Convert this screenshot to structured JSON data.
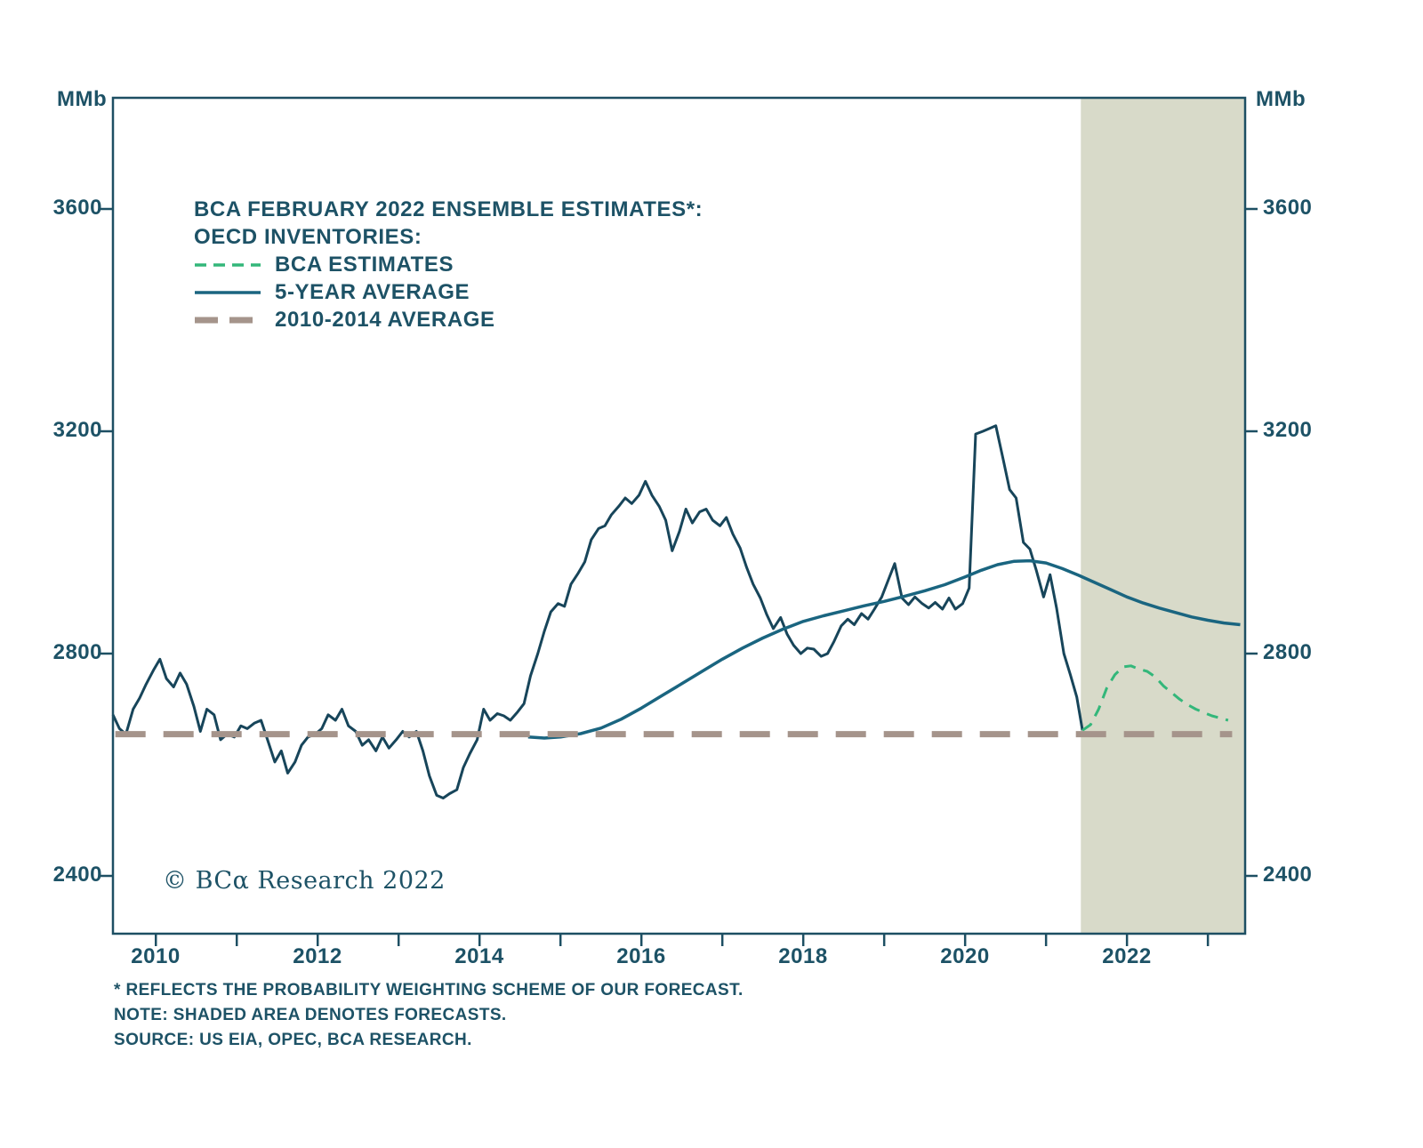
{
  "figure": {
    "unit_left": "MMb",
    "unit_right": "MMb",
    "copyright": "© BCα Research 2022",
    "footnotes": [
      "* REFLECTS THE PROBABILITY WEIGHTING SCHEME OF OUR FORECAST.",
      "NOTE: SHADED AREA DENOTES FORECASTS.",
      "SOURCE: US EIA, OPEC, BCA RESEARCH."
    ]
  },
  "legend": {
    "title_line1": "BCA FEBRUARY 2022 ENSEMBLE ESTIMATES*:",
    "title_line2": "OECD INVENTORIES:",
    "items": [
      {
        "label": "BCA ESTIMATES",
        "style": "dashed",
        "color": "#33b77a"
      },
      {
        "label": "5-YEAR AVERAGE",
        "style": "solid",
        "color": "#1a6580"
      },
      {
        "label": "2010-2014 AVERAGE",
        "style": "dashed-thick",
        "color": "#a5948b"
      }
    ]
  },
  "chart_data": {
    "type": "line",
    "title": "BCA FEBRUARY 2022 ENSEMBLE ESTIMATES: OECD INVENTORIES",
    "ylabel": "MMb",
    "xlabel": "",
    "x_range": [
      2009.47,
      2023.46
    ],
    "y_range": [
      2296,
      3800
    ],
    "y_ticks": [
      2400,
      2800,
      3200,
      3600
    ],
    "x_minor_ticks": [
      2010,
      2011,
      2012,
      2013,
      2014,
      2015,
      2016,
      2017,
      2018,
      2019,
      2020,
      2021,
      2022,
      2023
    ],
    "x_tick_labels": [
      2010,
      2012,
      2014,
      2016,
      2018,
      2020,
      2022
    ],
    "grid": false,
    "legend_position": "top-left-inside",
    "forecast_region": {
      "start": 2021.43,
      "end": 2023.46,
      "color": "#d8dac9",
      "note": "SHADED AREA DENOTES FORECASTS"
    },
    "frame_color": "#1d4f63",
    "series": [
      {
        "name": "OECD INVENTORIES (ACTUAL)",
        "color": "#17455a",
        "width": 3,
        "dash": null,
        "points": [
          [
            2009.47,
            2690
          ],
          [
            2009.55,
            2665
          ],
          [
            2009.63,
            2655
          ],
          [
            2009.72,
            2700
          ],
          [
            2009.8,
            2720
          ],
          [
            2009.88,
            2745
          ],
          [
            2009.97,
            2770
          ],
          [
            2010.05,
            2790
          ],
          [
            2010.13,
            2755
          ],
          [
            2010.22,
            2740
          ],
          [
            2010.3,
            2765
          ],
          [
            2010.38,
            2745
          ],
          [
            2010.47,
            2705
          ],
          [
            2010.55,
            2660
          ],
          [
            2010.63,
            2700
          ],
          [
            2010.72,
            2690
          ],
          [
            2010.8,
            2645
          ],
          [
            2010.88,
            2655
          ],
          [
            2010.97,
            2650
          ],
          [
            2011.05,
            2670
          ],
          [
            2011.13,
            2665
          ],
          [
            2011.22,
            2675
          ],
          [
            2011.3,
            2680
          ],
          [
            2011.38,
            2645
          ],
          [
            2011.47,
            2605
          ],
          [
            2011.55,
            2625
          ],
          [
            2011.63,
            2585
          ],
          [
            2011.72,
            2605
          ],
          [
            2011.8,
            2635
          ],
          [
            2011.88,
            2650
          ],
          [
            2011.97,
            2655
          ],
          [
            2012.05,
            2665
          ],
          [
            2012.13,
            2690
          ],
          [
            2012.22,
            2680
          ],
          [
            2012.3,
            2700
          ],
          [
            2012.38,
            2670
          ],
          [
            2012.47,
            2660
          ],
          [
            2012.55,
            2635
          ],
          [
            2012.63,
            2645
          ],
          [
            2012.72,
            2625
          ],
          [
            2012.8,
            2650
          ],
          [
            2012.88,
            2630
          ],
          [
            2012.97,
            2645
          ],
          [
            2013.05,
            2660
          ],
          [
            2013.13,
            2650
          ],
          [
            2013.22,
            2660
          ],
          [
            2013.3,
            2625
          ],
          [
            2013.38,
            2580
          ],
          [
            2013.47,
            2545
          ],
          [
            2013.55,
            2540
          ],
          [
            2013.63,
            2548
          ],
          [
            2013.72,
            2555
          ],
          [
            2013.8,
            2595
          ],
          [
            2013.88,
            2620
          ],
          [
            2013.97,
            2645
          ],
          [
            2014.05,
            2700
          ],
          [
            2014.13,
            2680
          ],
          [
            2014.22,
            2692
          ],
          [
            2014.3,
            2688
          ],
          [
            2014.38,
            2680
          ],
          [
            2014.47,
            2695
          ],
          [
            2014.55,
            2710
          ],
          [
            2014.63,
            2760
          ],
          [
            2014.72,
            2800
          ],
          [
            2014.8,
            2840
          ],
          [
            2014.88,
            2875
          ],
          [
            2014.97,
            2890
          ],
          [
            2015.05,
            2885
          ],
          [
            2015.13,
            2925
          ],
          [
            2015.22,
            2945
          ],
          [
            2015.3,
            2965
          ],
          [
            2015.38,
            3005
          ],
          [
            2015.47,
            3025
          ],
          [
            2015.55,
            3030
          ],
          [
            2015.63,
            3050
          ],
          [
            2015.72,
            3065
          ],
          [
            2015.8,
            3080
          ],
          [
            2015.88,
            3070
          ],
          [
            2015.97,
            3085
          ],
          [
            2016.05,
            3110
          ],
          [
            2016.13,
            3085
          ],
          [
            2016.22,
            3065
          ],
          [
            2016.3,
            3040
          ],
          [
            2016.38,
            2985
          ],
          [
            2016.47,
            3020
          ],
          [
            2016.55,
            3060
          ],
          [
            2016.63,
            3035
          ],
          [
            2016.72,
            3055
          ],
          [
            2016.8,
            3060
          ],
          [
            2016.88,
            3040
          ],
          [
            2016.97,
            3030
          ],
          [
            2017.05,
            3045
          ],
          [
            2017.13,
            3015
          ],
          [
            2017.22,
            2990
          ],
          [
            2017.3,
            2955
          ],
          [
            2017.38,
            2925
          ],
          [
            2017.47,
            2900
          ],
          [
            2017.55,
            2870
          ],
          [
            2017.63,
            2845
          ],
          [
            2017.72,
            2865
          ],
          [
            2017.8,
            2835
          ],
          [
            2017.88,
            2815
          ],
          [
            2017.97,
            2800
          ],
          [
            2018.05,
            2810
          ],
          [
            2018.13,
            2808
          ],
          [
            2018.22,
            2795
          ],
          [
            2018.3,
            2800
          ],
          [
            2018.38,
            2822
          ],
          [
            2018.47,
            2850
          ],
          [
            2018.55,
            2862
          ],
          [
            2018.63,
            2852
          ],
          [
            2018.72,
            2872
          ],
          [
            2018.8,
            2862
          ],
          [
            2018.88,
            2880
          ],
          [
            2018.97,
            2902
          ],
          [
            2019.05,
            2932
          ],
          [
            2019.13,
            2962
          ],
          [
            2019.22,
            2900
          ],
          [
            2019.3,
            2888
          ],
          [
            2019.38,
            2902
          ],
          [
            2019.47,
            2890
          ],
          [
            2019.55,
            2882
          ],
          [
            2019.63,
            2892
          ],
          [
            2019.72,
            2880
          ],
          [
            2019.8,
            2900
          ],
          [
            2019.88,
            2880
          ],
          [
            2019.97,
            2890
          ],
          [
            2020.05,
            2918
          ],
          [
            2020.13,
            3195
          ],
          [
            2020.22,
            3200
          ],
          [
            2020.3,
            3205
          ],
          [
            2020.38,
            3210
          ],
          [
            2020.47,
            3150
          ],
          [
            2020.55,
            3095
          ],
          [
            2020.63,
            3080
          ],
          [
            2020.72,
            3000
          ],
          [
            2020.8,
            2988
          ],
          [
            2020.88,
            2950
          ],
          [
            2020.97,
            2902
          ],
          [
            2021.05,
            2942
          ],
          [
            2021.13,
            2882
          ],
          [
            2021.22,
            2800
          ],
          [
            2021.3,
            2762
          ],
          [
            2021.38,
            2722
          ],
          [
            2021.45,
            2662
          ]
        ]
      },
      {
        "name": "5-YEAR AVERAGE",
        "color": "#1a6580",
        "width": 3.5,
        "dash": null,
        "points": [
          [
            2014.6,
            2650
          ],
          [
            2014.8,
            2648
          ],
          [
            2015.0,
            2650
          ],
          [
            2015.25,
            2656
          ],
          [
            2015.5,
            2666
          ],
          [
            2015.75,
            2682
          ],
          [
            2016.0,
            2702
          ],
          [
            2016.25,
            2724
          ],
          [
            2016.5,
            2746
          ],
          [
            2016.75,
            2768
          ],
          [
            2017.0,
            2790
          ],
          [
            2017.25,
            2810
          ],
          [
            2017.5,
            2828
          ],
          [
            2017.75,
            2844
          ],
          [
            2018.0,
            2858
          ],
          [
            2018.25,
            2868
          ],
          [
            2018.5,
            2877
          ],
          [
            2018.75,
            2886
          ],
          [
            2019.0,
            2894
          ],
          [
            2019.25,
            2903
          ],
          [
            2019.5,
            2913
          ],
          [
            2019.75,
            2924
          ],
          [
            2020.0,
            2938
          ],
          [
            2020.2,
            2950
          ],
          [
            2020.4,
            2960
          ],
          [
            2020.6,
            2966
          ],
          [
            2020.8,
            2967
          ],
          [
            2021.0,
            2963
          ],
          [
            2021.2,
            2953
          ],
          [
            2021.4,
            2941
          ],
          [
            2021.6,
            2928
          ],
          [
            2021.8,
            2915
          ],
          [
            2022.0,
            2902
          ],
          [
            2022.2,
            2891
          ],
          [
            2022.4,
            2882
          ],
          [
            2022.6,
            2874
          ],
          [
            2022.8,
            2866
          ],
          [
            2023.0,
            2860
          ],
          [
            2023.2,
            2855
          ],
          [
            2023.4,
            2852
          ]
        ]
      },
      {
        "name": "BCA ESTIMATES (FORECAST)",
        "color": "#33b77a",
        "width": 3,
        "dash": "13,9",
        "points": [
          [
            2021.45,
            2662
          ],
          [
            2021.55,
            2672
          ],
          [
            2021.65,
            2700
          ],
          [
            2021.75,
            2738
          ],
          [
            2021.85,
            2762
          ],
          [
            2021.95,
            2776
          ],
          [
            2022.05,
            2778
          ],
          [
            2022.15,
            2772
          ],
          [
            2022.25,
            2768
          ],
          [
            2022.35,
            2758
          ],
          [
            2022.45,
            2742
          ],
          [
            2022.55,
            2730
          ],
          [
            2022.65,
            2718
          ],
          [
            2022.75,
            2708
          ],
          [
            2022.85,
            2700
          ],
          [
            2022.95,
            2694
          ],
          [
            2023.05,
            2688
          ],
          [
            2023.15,
            2684
          ],
          [
            2023.25,
            2680
          ]
        ]
      },
      {
        "name": "2010-2014 AVERAGE",
        "color": "#a5948b",
        "width": 7,
        "dash": "34,20",
        "points": [
          [
            2009.5,
            2655
          ],
          [
            2023.3,
            2655
          ]
        ]
      }
    ]
  }
}
